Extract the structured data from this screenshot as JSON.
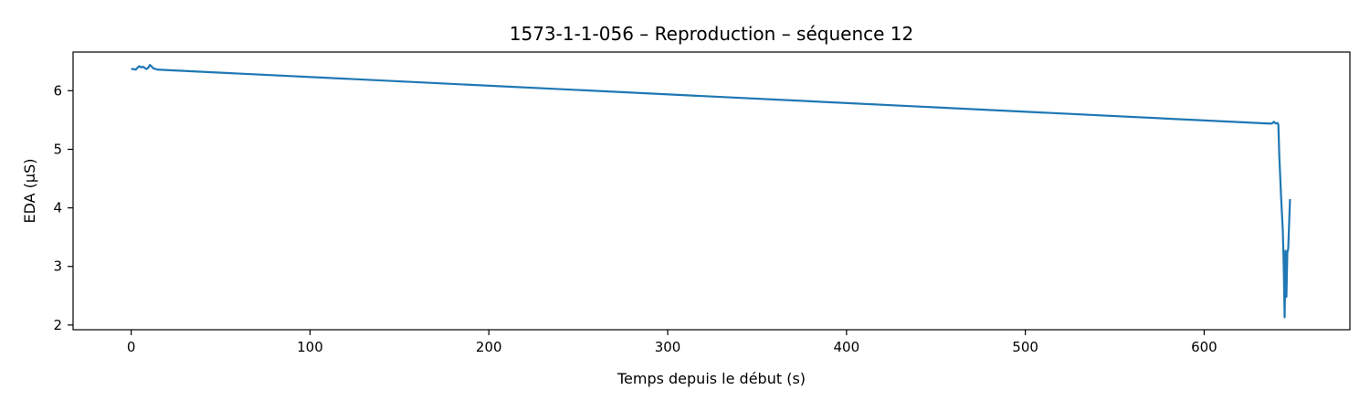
{
  "chart_data": {
    "type": "line",
    "title": "1573-1-1-056 – Reproduction – séquence 12",
    "xlabel": "Temps depuis le début (s)",
    "ylabel": "EDA (µS)",
    "xlim": [
      -32.5,
      681.5
    ],
    "ylim": [
      1.92,
      6.66
    ],
    "xticks": [
      0,
      100,
      200,
      300,
      400,
      500,
      600
    ],
    "yticks": [
      2,
      3,
      4,
      5,
      6
    ],
    "grid": false,
    "series": [
      {
        "color": "#1f77b4",
        "x": [
          0,
          1.5,
          2.5,
          3.5,
          4.5,
          5.5,
          6.5,
          7.5,
          8.5,
          9.5,
          10.5,
          11.5,
          12.5,
          13.5,
          15,
          636,
          638,
          639,
          640,
          641,
          641.5,
          642,
          643,
          644,
          644.5,
          645,
          645.5,
          646,
          646.5,
          647,
          648
        ],
        "y": [
          6.37,
          6.37,
          6.36,
          6.39,
          6.42,
          6.4,
          6.41,
          6.39,
          6.37,
          6.39,
          6.44,
          6.41,
          6.38,
          6.37,
          6.36,
          5.44,
          5.44,
          5.47,
          5.44,
          5.45,
          5.42,
          4.9,
          4.2,
          3.6,
          3.0,
          2.13,
          3.27,
          2.48,
          3.24,
          3.3,
          4.15
        ]
      }
    ]
  }
}
